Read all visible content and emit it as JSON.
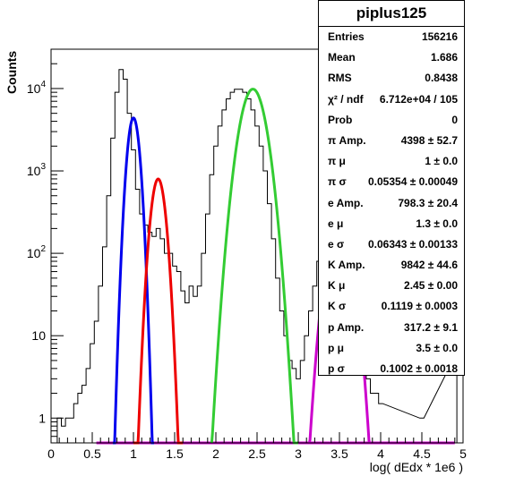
{
  "chart_data": {
    "type": "histogram",
    "title": "piplus125",
    "xlabel": "log( dEdx * 1e6 )",
    "ylabel": "Counts",
    "xlim": [
      0,
      5
    ],
    "ylim": [
      0.5,
      30000
    ],
    "log_y": true,
    "x_ticks": [
      "0",
      "0.5",
      "1",
      "1.5",
      "2",
      "2.5",
      "3",
      "3.5",
      "4",
      "4.5",
      "5"
    ],
    "y_ticks": [
      {
        "value": 1,
        "label": "1"
      },
      {
        "value": 10,
        "label": "10"
      },
      {
        "value": 100,
        "label": "10^2"
      },
      {
        "value": 1000,
        "label": "10^3"
      },
      {
        "value": 10000,
        "label": "10^4"
      }
    ],
    "histogram": {
      "x": [
        0.1,
        0.15,
        0.2,
        0.25,
        0.3,
        0.35,
        0.4,
        0.45,
        0.5,
        0.55,
        0.6,
        0.65,
        0.7,
        0.75,
        0.8,
        0.85,
        0.9,
        0.95,
        1.0,
        1.05,
        1.1,
        1.15,
        1.2,
        1.25,
        1.3,
        1.35,
        1.4,
        1.45,
        1.5,
        1.55,
        1.6,
        1.65,
        1.7,
        1.75,
        1.8,
        1.85,
        1.9,
        1.95,
        2.0,
        2.05,
        2.1,
        2.15,
        2.2,
        2.25,
        2.3,
        2.35,
        2.4,
        2.45,
        2.5,
        2.55,
        2.6,
        2.65,
        2.7,
        2.75,
        2.8,
        2.85,
        2.9,
        2.95,
        3.0,
        3.05,
        3.1,
        3.15,
        3.2,
        3.25,
        3.3,
        3.35,
        3.4,
        3.45,
        3.5,
        3.55,
        3.6,
        3.65,
        3.7,
        3.75,
        3.8,
        3.85,
        3.9,
        3.95,
        4.0,
        4.5,
        4.9
      ],
      "y": [
        1,
        0.8,
        1,
        1,
        1.5,
        2,
        2.5,
        4,
        8,
        15,
        40,
        120,
        500,
        2500,
        9000,
        17000,
        13000,
        5000,
        1800,
        600,
        300,
        220,
        180,
        160,
        200,
        150,
        100,
        100,
        70,
        60,
        35,
        25,
        40,
        30,
        40,
        100,
        300,
        900,
        2000,
        3500,
        5500,
        7500,
        9000,
        9800,
        9800,
        9000,
        7500,
        5500,
        3500,
        2000,
        1000,
        400,
        150,
        50,
        20,
        10,
        5,
        4,
        3,
        5,
        10,
        20,
        40,
        80,
        150,
        250,
        300,
        300,
        250,
        150,
        80,
        40,
        20,
        10,
        5,
        3,
        2,
        2,
        1.5,
        1,
        5
      ]
    },
    "fits": [
      {
        "color": "#0000ee",
        "amp": 4398,
        "mu": 1.0,
        "sigma": 0.05354,
        "range": [
          0.75,
          1.25
        ]
      },
      {
        "color": "#ee0000",
        "amp": 798.3,
        "mu": 1.3,
        "sigma": 0.06343,
        "range": [
          1.0,
          1.6
        ]
      },
      {
        "color": "#33cc33",
        "amp": 9842,
        "mu": 2.45,
        "sigma": 0.1119,
        "range": [
          1.95,
          3.0
        ]
      },
      {
        "color": "#cc00cc",
        "amp": 317.2,
        "mu": 3.5,
        "sigma": 0.1002,
        "range": [
          3.1,
          3.95
        ]
      }
    ],
    "baseline_color": "#cc00cc"
  },
  "stats": {
    "title": "piplus125",
    "rows": [
      {
        "k": "Entries",
        "v": "156216"
      },
      {
        "k": "Mean",
        "v": "1.686"
      },
      {
        "k": "RMS",
        "v": "0.8438"
      },
      {
        "k": "χ² / ndf",
        "v": "6.712e+04 / 105"
      },
      {
        "k": "Prob",
        "v": "0"
      },
      {
        "k": "π Amp.",
        "v": "4398 ± 52.7"
      },
      {
        "k": "π μ",
        "v": "1 ± 0.0"
      },
      {
        "k": "π σ",
        "v": "0.05354 ± 0.00049"
      },
      {
        "k": "e Amp.",
        "v": "798.3 ± 20.4"
      },
      {
        "k": "e μ",
        "v": "1.3 ± 0.0"
      },
      {
        "k": "e σ",
        "v": "0.06343 ± 0.00133"
      },
      {
        "k": "K Amp.",
        "v": "9842 ± 44.6"
      },
      {
        "k": "K μ",
        "v": "2.45 ± 0.00"
      },
      {
        "k": "K σ",
        "v": "0.1119 ± 0.0003"
      },
      {
        "k": "p Amp.",
        "v": "317.2 ± 9.1"
      },
      {
        "k": "p μ",
        "v": "3.5 ± 0.0"
      },
      {
        "k": "p σ",
        "v": "0.1002 ± 0.0018"
      }
    ]
  }
}
